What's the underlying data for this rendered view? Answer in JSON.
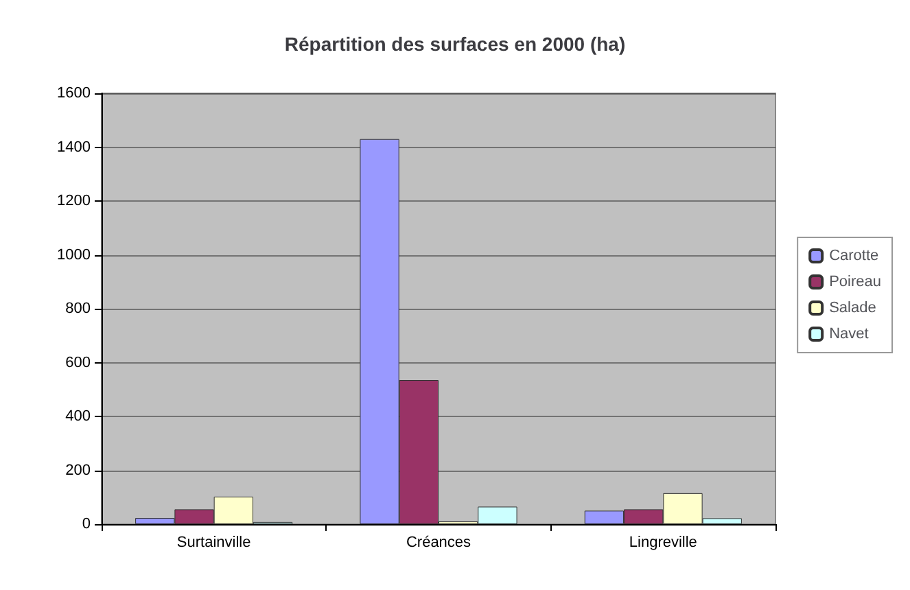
{
  "chart_data": {
    "type": "bar",
    "title": "Répartition des surfaces en 2000 (ha)",
    "categories": [
      "Surtainville",
      "Créances",
      "Lingreville"
    ],
    "series": [
      {
        "name": "Carotte",
        "color": "#9999ff",
        "values": [
          23,
          1430,
          50
        ]
      },
      {
        "name": "Poireau",
        "color": "#993366",
        "values": [
          55,
          535,
          55
        ]
      },
      {
        "name": "Salade",
        "color": "#ffffcc",
        "values": [
          102,
          10,
          115
        ]
      },
      {
        "name": "Navet",
        "color": "#ccffff",
        "values": [
          8,
          65,
          22
        ]
      }
    ],
    "ylim": [
      0,
      1600
    ],
    "yticks": [
      0,
      200,
      400,
      600,
      800,
      1000,
      1200,
      1400,
      1600
    ],
    "grid": "y",
    "legend": "right"
  }
}
